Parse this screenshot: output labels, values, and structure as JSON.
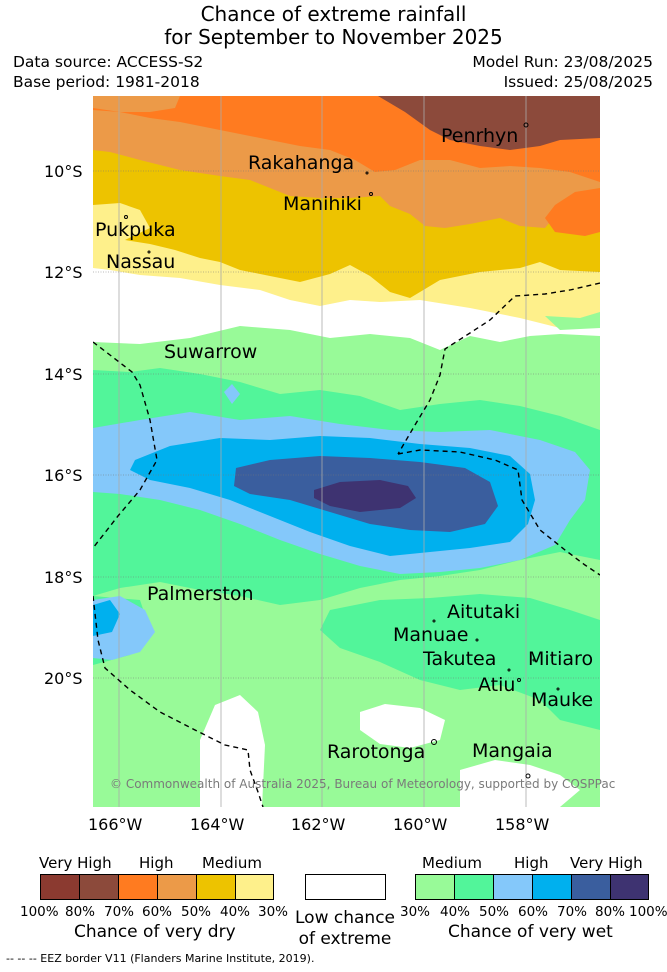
{
  "header": {
    "title_line1": "Chance of extreme rainfall",
    "title_line2": "for September to November 2025",
    "data_source": "Data source: ACCESS-S2",
    "base_period": "Base period: 1981-2018",
    "model_run": "Model Run: 23/08/2025",
    "issued": "Issued: 25/08/2025"
  },
  "map": {
    "lat_labels": [
      "10°S",
      "12°S",
      "14°S",
      "16°S",
      "18°S",
      "20°S"
    ],
    "lon_labels": [
      "166°W",
      "164°W",
      "162°W",
      "160°W",
      "158°W"
    ],
    "places": [
      "Penrhyn",
      "Rakahanga",
      "Manihiki",
      "Pukpuka",
      "Nassau",
      "Suwarrow",
      "Palmerston",
      "Aitutaki",
      "Manuae",
      "Takutea",
      "Mitiaro",
      "Atiu",
      "Mauke",
      "Rarotonga",
      "Mangaia"
    ],
    "credit": "© Commonwealth of Australia 2025, Bureau of Meteorology, supported by COSPPac",
    "colors": {
      "dry_100_80": "#8b3a30",
      "dry_80_70": "#8c4a3b",
      "dry_70_60": "#ff7b20",
      "dry_60_50": "#ec9a48",
      "dry_50_40": "#edc300",
      "dry_40_30": "#fef08b",
      "low": "#ffffff",
      "wet_30_40": "#98fa98",
      "wet_40_50": "#52f59a",
      "wet_50_60": "#84c8fa",
      "wet_60_70": "#00b0ee",
      "wet_70_80": "#3a5e9e",
      "wet_80_100": "#3e3371"
    }
  },
  "legend": {
    "dry_heads": [
      "Very High",
      "High",
      "Medium"
    ],
    "dry_ticks": [
      "100%",
      "80%",
      "70%",
      "60%",
      "50%",
      "40%",
      "30%"
    ],
    "dry_title": "Chance of very dry",
    "low_title_line1": "Low chance",
    "low_title_line2": "of extreme",
    "wet_heads": [
      "Medium",
      "High",
      "Very High"
    ],
    "wet_ticks": [
      "30%",
      "40%",
      "50%",
      "60%",
      "70%",
      "80%",
      "100%"
    ],
    "wet_title": "Chance of very wet"
  },
  "footer": "-- -- -- EEZ border V11 (Flanders Marine Institute, 2019)."
}
